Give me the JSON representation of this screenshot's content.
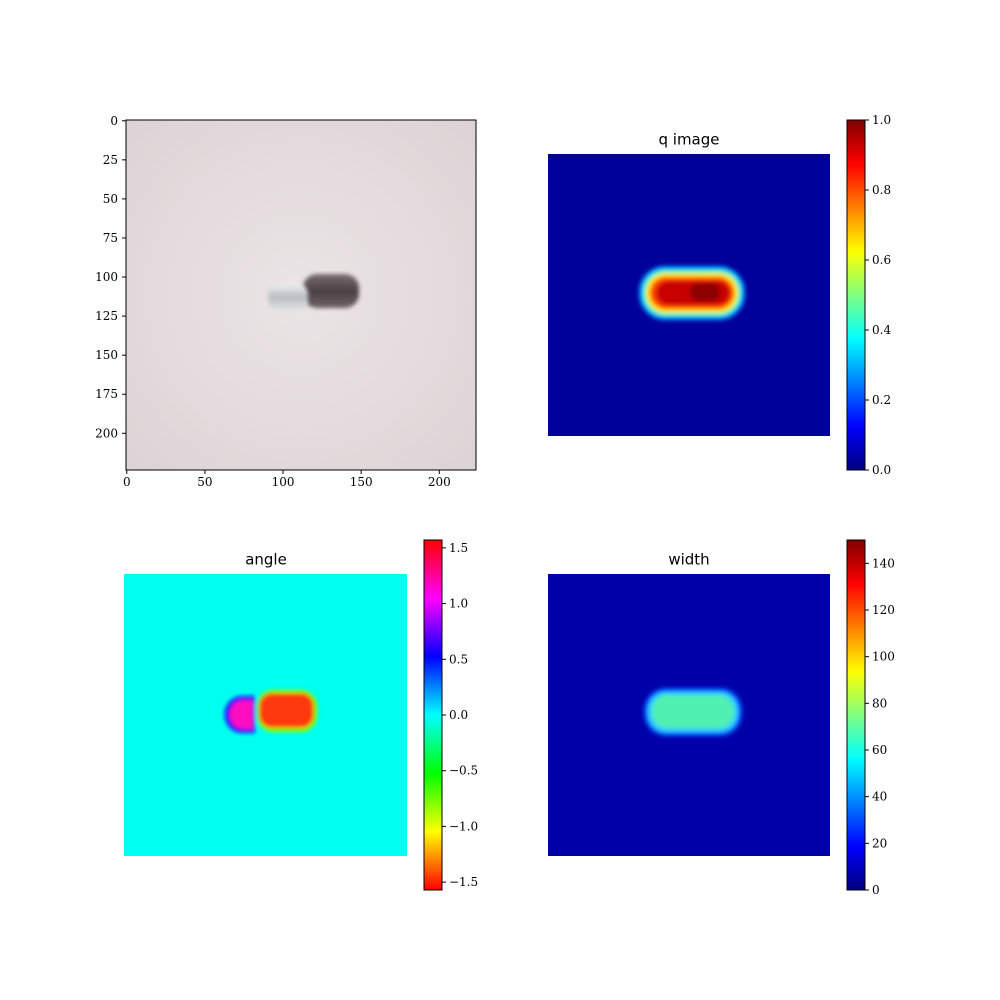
{
  "chart_data": [
    {
      "type": "image",
      "xlim": [
        -0.5,
        223.5
      ],
      "ylim": [
        223.5,
        -0.5
      ],
      "xticks": [
        0,
        50,
        100,
        150,
        200
      ],
      "yticks": [
        0,
        25,
        50,
        75,
        100,
        125,
        150,
        175,
        200
      ]
    },
    {
      "type": "heatmap",
      "title": "q image",
      "colormap": "jet",
      "clim": [
        0,
        1
      ],
      "cticks": [
        {
          "value": 0,
          "label": "0.0"
        },
        0.2,
        0.4,
        0.6,
        0.8,
        {
          "value": 1,
          "label": "1.0"
        }
      ]
    },
    {
      "type": "heatmap",
      "title": "angle",
      "colormap": "hsv",
      "clim": [
        -1.5708,
        1.5708
      ],
      "cticks": [
        {
          "value": -1.5,
          "label": "−1.5"
        },
        {
          "value": -1,
          "label": "−1.0"
        },
        {
          "value": -0.5,
          "label": "−0.5"
        },
        {
          "value": 0,
          "label": "0.0"
        },
        0.5,
        {
          "value": 1,
          "label": "1.0"
        },
        1.5
      ]
    },
    {
      "type": "heatmap",
      "title": "width",
      "colormap": "jet",
      "clim": [
        0,
        150
      ],
      "cticks": [
        0,
        20,
        40,
        60,
        80,
        100,
        120,
        140
      ]
    }
  ]
}
